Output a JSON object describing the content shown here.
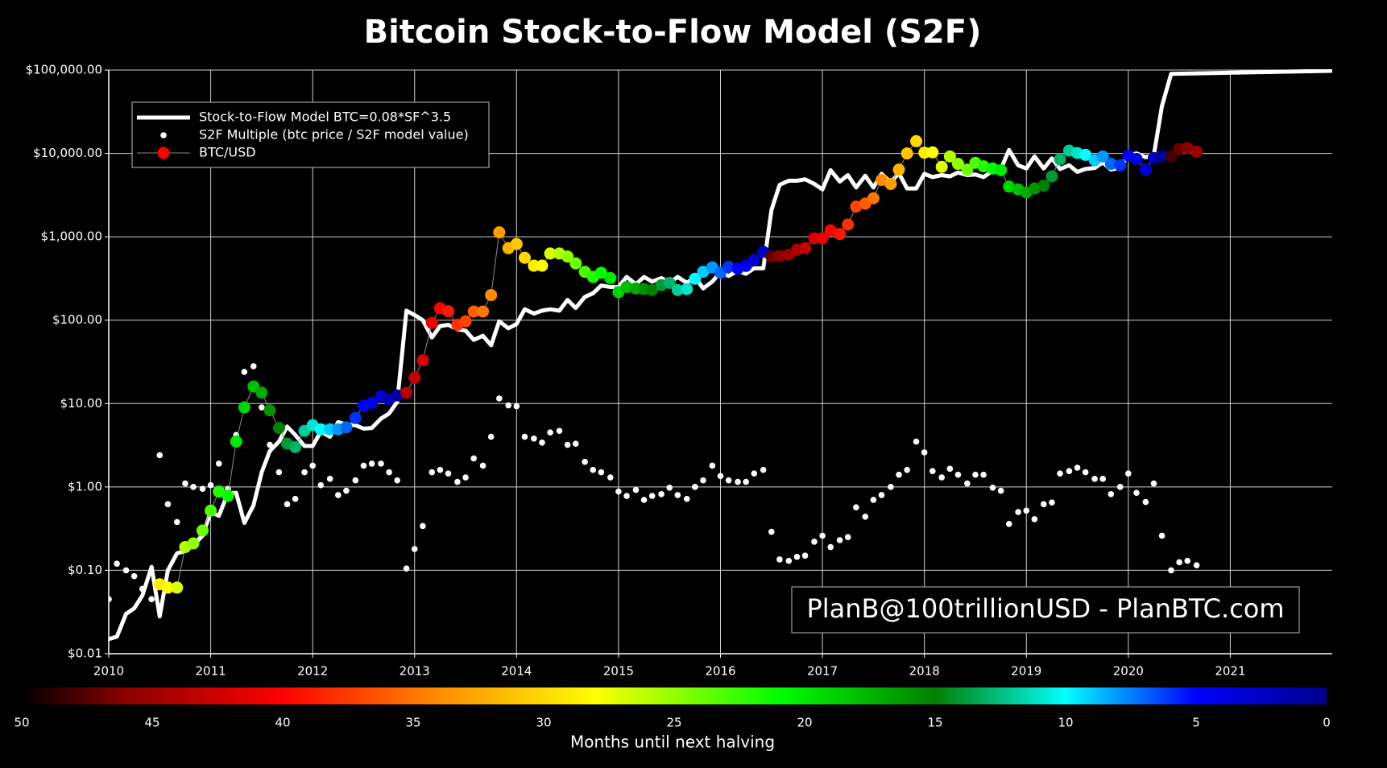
{
  "chart_data": {
    "type": "line",
    "title": "Bitcoin Stock-to-Flow Model (S2F)",
    "annotation": "PlanB@100trillionUSD - PlanBTC.com",
    "log_y": true,
    "grid": true,
    "legend": "upper left",
    "xlim": [
      2010,
      2022
    ],
    "xticks": [
      2010,
      2011,
      2012,
      2013,
      2014,
      2015,
      2016,
      2017,
      2018,
      2019,
      2020,
      2021
    ],
    "ylim": [
      0.01,
      100000
    ],
    "yticks": [
      {
        "value": 0.01,
        "label": "$0.01"
      },
      {
        "value": 0.1,
        "label": "$0.10"
      },
      {
        "value": 1,
        "label": "$1.00"
      },
      {
        "value": 10,
        "label": "$10.00"
      },
      {
        "value": 100,
        "label": "$100.00"
      },
      {
        "value": 1000,
        "label": "$1,000.00"
      },
      {
        "value": 10000,
        "label": "$10,000.00"
      },
      {
        "value": 100000,
        "label": "$100,000.00"
      }
    ],
    "x": [
      2010,
      2010.08,
      2010.17,
      2010.25,
      2010.33,
      2010.42,
      2010.5,
      2010.58,
      2010.67,
      2010.75,
      2010.83,
      2010.92,
      2011,
      2011.08,
      2011.17,
      2011.25,
      2011.33,
      2011.42,
      2011.5,
      2011.58,
      2011.67,
      2011.75,
      2011.83,
      2011.92,
      2012,
      2012.08,
      2012.17,
      2012.25,
      2012.33,
      2012.42,
      2012.5,
      2012.58,
      2012.67,
      2012.75,
      2012.83,
      2012.92,
      2013,
      2013.08,
      2013.17,
      2013.25,
      2013.33,
      2013.42,
      2013.5,
      2013.58,
      2013.67,
      2013.75,
      2013.83,
      2013.92,
      2014,
      2014.08,
      2014.17,
      2014.25,
      2014.33,
      2014.42,
      2014.5,
      2014.58,
      2014.67,
      2014.75,
      2014.83,
      2014.92,
      2015,
      2015.08,
      2015.17,
      2015.25,
      2015.33,
      2015.42,
      2015.5,
      2015.58,
      2015.67,
      2015.75,
      2015.83,
      2015.92,
      2016,
      2016.08,
      2016.17,
      2016.25,
      2016.33,
      2016.42,
      2016.5,
      2016.58,
      2016.67,
      2016.75,
      2016.83,
      2016.92,
      2017,
      2017.08,
      2017.17,
      2017.25,
      2017.33,
      2017.42,
      2017.5,
      2017.58,
      2017.67,
      2017.75,
      2017.83,
      2017.92,
      2018,
      2018.08,
      2018.17,
      2018.25,
      2018.33,
      2018.42,
      2018.5,
      2018.58,
      2018.67,
      2018.75,
      2018.83,
      2018.92,
      2019,
      2019.08,
      2019.17,
      2019.25,
      2019.33,
      2019.42,
      2019.5,
      2019.58,
      2019.67,
      2019.75,
      2019.83,
      2019.92,
      2020,
      2020.08,
      2020.17,
      2020.25,
      2020.33,
      2020.42,
      2020.5,
      2020.58,
      2020.67
    ],
    "series": [
      {
        "name": "Stock-to-Flow Model BTC=0.08*SF^3.5",
        "color": "#ffffff",
        "style": "line",
        "x": [
          2010,
          2010.08,
          2010.17,
          2010.25,
          2010.33,
          2010.42,
          2010.5,
          2010.58,
          2010.67,
          2010.75,
          2010.83,
          2010.92,
          2011,
          2011.08,
          2011.17,
          2011.25,
          2011.33,
          2011.42,
          2011.5,
          2011.58,
          2011.67,
          2011.75,
          2011.83,
          2011.92,
          2012,
          2012.08,
          2012.17,
          2012.25,
          2012.33,
          2012.42,
          2012.5,
          2012.58,
          2012.67,
          2012.75,
          2012.83,
          2012.92,
          2013,
          2013.08,
          2013.17,
          2013.25,
          2013.33,
          2013.42,
          2013.5,
          2013.58,
          2013.67,
          2013.75,
          2013.83,
          2013.92,
          2014,
          2014.08,
          2014.17,
          2014.25,
          2014.33,
          2014.42,
          2014.5,
          2014.58,
          2014.67,
          2014.75,
          2014.83,
          2014.92,
          2015,
          2015.08,
          2015.17,
          2015.25,
          2015.33,
          2015.42,
          2015.5,
          2015.58,
          2015.67,
          2015.75,
          2015.83,
          2015.92,
          2016,
          2016.08,
          2016.17,
          2016.25,
          2016.33,
          2016.42,
          2016.5,
          2016.58,
          2016.67,
          2016.75,
          2016.83,
          2016.92,
          2017,
          2017.08,
          2017.17,
          2017.25,
          2017.33,
          2017.42,
          2017.5,
          2017.58,
          2017.67,
          2017.75,
          2017.83,
          2017.92,
          2018,
          2018.08,
          2018.17,
          2018.25,
          2018.33,
          2018.42,
          2018.5,
          2018.58,
          2018.67,
          2018.75,
          2018.83,
          2018.92,
          2019,
          2019.08,
          2019.17,
          2019.25,
          2019.33,
          2019.42,
          2019.5,
          2019.58,
          2019.67,
          2019.75,
          2019.83,
          2019.92,
          2020,
          2020.08,
          2020.17,
          2020.25,
          2020.33,
          2020.42,
          2022
        ],
        "values": [
          0.015,
          0.016,
          0.03,
          0.035,
          0.05,
          0.11,
          0.028,
          0.1,
          0.16,
          0.17,
          0.2,
          0.26,
          0.5,
          0.45,
          0.85,
          0.85,
          0.37,
          0.6,
          1.5,
          2.7,
          3.5,
          5.3,
          4.2,
          3.1,
          3.1,
          4.6,
          4.0,
          6.0,
          5.6,
          5.5,
          5.0,
          5.1,
          6.6,
          7.6,
          10.5,
          130,
          115,
          100,
          62,
          85,
          88,
          78,
          75,
          58,
          65,
          50,
          97,
          80,
          90,
          135,
          120,
          130,
          135,
          130,
          175,
          140,
          190,
          210,
          260,
          250,
          250,
          330,
          270,
          330,
          290,
          320,
          280,
          330,
          280,
          330,
          240,
          290,
          380,
          340,
          390,
          360,
          420,
          420,
          2100,
          4200,
          4700,
          4700,
          4900,
          4300,
          3700,
          6300,
          4600,
          5500,
          3900,
          5400,
          3900,
          5700,
          4500,
          5800,
          3800,
          3800,
          5700,
          5200,
          5500,
          5300,
          5900,
          5500,
          5600,
          5200,
          6200,
          6500,
          11000,
          7200,
          6600,
          9200,
          6600,
          8700,
          6500,
          7200,
          6000,
          6500,
          6700,
          7800,
          6400,
          6700,
          9500,
          10000,
          9000,
          9500,
          37000,
          90000,
          98000
        ]
      },
      {
        "name": "S2F Multiple (btc price / S2F model value)",
        "color": "#ffffff",
        "style": "dots",
        "values": [
          0.045,
          0.12,
          0.1,
          0.085,
          0.06,
          0.045,
          2.4,
          0.62,
          0.38,
          1.1,
          1.0,
          0.95,
          1.05,
          1.9,
          0.95,
          4.2,
          24,
          28,
          9,
          3.2,
          1.5,
          0.62,
          0.72,
          1.5,
          1.8,
          1.05,
          1.25,
          0.8,
          0.9,
          1.2,
          1.8,
          1.9,
          1.9,
          1.5,
          1.2,
          0.105,
          0.18,
          0.34,
          1.5,
          1.6,
          1.45,
          1.15,
          1.3,
          2.2,
          1.8,
          4.0,
          11.5,
          9.5,
          9.3,
          4.0,
          3.8,
          3.4,
          4.5,
          4.7,
          3.2,
          3.3,
          2.0,
          1.6,
          1.5,
          1.3,
          0.88,
          0.78,
          0.92,
          0.7,
          0.78,
          0.82,
          0.98,
          0.8,
          0.72,
          1.0,
          1.2,
          1.8,
          1.35,
          1.2,
          1.15,
          1.15,
          1.45,
          1.6,
          0.29,
          0.135,
          0.13,
          0.145,
          0.15,
          0.22,
          0.26,
          0.19,
          0.23,
          0.25,
          0.57,
          0.44,
          0.7,
          0.8,
          1.0,
          1.4,
          1.6,
          3.5,
          2.6,
          1.55,
          1.3,
          1.65,
          1.4,
          1.1,
          1.4,
          1.4,
          0.98,
          0.9,
          0.36,
          0.5,
          0.52,
          0.41,
          0.62,
          0.65,
          1.45,
          1.55,
          1.7,
          1.5,
          1.25,
          1.25,
          0.82,
          1.0,
          1.45,
          0.85,
          0.66,
          1.1,
          0.26,
          0.1,
          0.125,
          0.13,
          0.115
        ]
      },
      {
        "name": "BTC/USD",
        "color": "#ff0000",
        "line_color": "#8a8a8a",
        "style": "colored-dots",
        "values": [
          null,
          null,
          null,
          null,
          null,
          null,
          0.068,
          0.062,
          0.062,
          0.19,
          0.21,
          0.3,
          0.52,
          0.88,
          0.78,
          3.5,
          9,
          16,
          13.5,
          8.3,
          5.1,
          3.3,
          3.0,
          4.7,
          5.5,
          4.9,
          4.9,
          4.9,
          5.2,
          6.7,
          9.4,
          10.2,
          12.2,
          11.2,
          12.5,
          13.5,
          20.4,
          33,
          93,
          139,
          128,
          88,
          97,
          127,
          127,
          200,
          1130,
          730,
          820,
          560,
          450,
          450,
          630,
          630,
          580,
          480,
          380,
          330,
          370,
          320,
          217,
          250,
          240,
          236,
          230,
          263,
          280,
          230,
          236,
          314,
          380,
          430,
          370,
          437,
          416,
          448,
          530,
          660,
          575,
          590,
          610,
          700,
          730,
          960,
          960,
          1200,
          1080,
          1400,
          2300,
          2500,
          2900,
          4800,
          4300,
          6400,
          10000,
          14000,
          10200,
          10300,
          6900,
          9200,
          7500,
          6400,
          7700,
          7000,
          6600,
          6300,
          4000,
          3700,
          3400,
          3800,
          4100,
          5300,
          8500,
          10800,
          10100,
          9600,
          8300,
          9200,
          7500,
          7200,
          9400,
          8600,
          6400,
          8800,
          9300,
          9200,
          11300,
          11600,
          10500
        ],
        "color_values": [
          null,
          null,
          null,
          null,
          null,
          null,
          29,
          28,
          27,
          26,
          25,
          24,
          23,
          22,
          21,
          20,
          19,
          18,
          17,
          16,
          15,
          14,
          13,
          12,
          11,
          10,
          9,
          8,
          7,
          6,
          5,
          4,
          3,
          2,
          1,
          44,
          43,
          42,
          41,
          40,
          39,
          38,
          37,
          36,
          35,
          34,
          33,
          32,
          31,
          30,
          29,
          28,
          27,
          26,
          25,
          24,
          23,
          22,
          21,
          20,
          19,
          18,
          17,
          16,
          15,
          14,
          13,
          12,
          11,
          10,
          9,
          8,
          7,
          6,
          5,
          4,
          3,
          2,
          47,
          46,
          45,
          44,
          43,
          42,
          41,
          40,
          39,
          38,
          37,
          36,
          35,
          34,
          33,
          32,
          31,
          30,
          29,
          28,
          27,
          26,
          25,
          24,
          23,
          22,
          21,
          20,
          19,
          18,
          17,
          16,
          15,
          14,
          13,
          12,
          11,
          10,
          9,
          8,
          7,
          6,
          5,
          4,
          3,
          2,
          1,
          48,
          47,
          46,
          45
        ]
      }
    ],
    "colorbar": {
      "label": "Months until next halving",
      "lim": [
        50,
        0
      ],
      "ticks": [
        50,
        45,
        40,
        35,
        30,
        25,
        20,
        15,
        10,
        5,
        0
      ],
      "colorscale": [
        [
          50,
          "#000000"
        ],
        [
          46,
          "#8b0000"
        ],
        [
          40,
          "#ff0000"
        ],
        [
          34,
          "#ff8c00"
        ],
        [
          28,
          "#ffff00"
        ],
        [
          21,
          "#00ff00"
        ],
        [
          15,
          "#008000"
        ],
        [
          10,
          "#00ffff"
        ],
        [
          5,
          "#0000ff"
        ],
        [
          0,
          "#00008b"
        ]
      ]
    }
  }
}
